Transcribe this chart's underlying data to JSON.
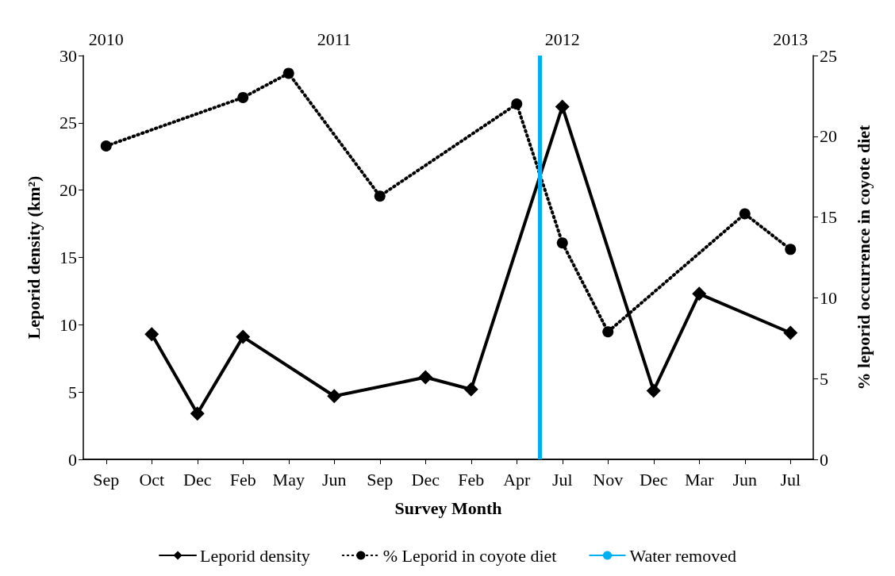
{
  "chart_data": {
    "type": "line",
    "categories": [
      "Sep",
      "Oct",
      "Dec",
      "Feb",
      "May",
      "Jun",
      "Sep",
      "Dec",
      "Feb",
      "Apr",
      "Jul",
      "Nov",
      "Dec",
      "Mar",
      "Jun",
      "Jul"
    ],
    "xlabel": "Survey Month",
    "ylabel": "Leporid density (km²)",
    "y2label": "% leporid occurrence in coyote diet",
    "series": [
      {
        "name": "Leporid density",
        "color": "#000000",
        "marker": "diamond",
        "line_style": "solid",
        "values": [
          null,
          9.3,
          3.4,
          9.1,
          null,
          4.7,
          null,
          6.1,
          5.2,
          null,
          26.2,
          null,
          5.1,
          12.3,
          null,
          9.4
        ]
      },
      {
        "name": "% Leporid in coyote diet",
        "color": "#000000",
        "marker": "circle",
        "line_style": "dotted",
        "axis": "y2",
        "values": [
          19.4,
          null,
          null,
          22.4,
          23.9,
          null,
          16.3,
          null,
          null,
          22.0,
          13.4,
          7.9,
          null,
          null,
          15.2,
          13.0
        ]
      }
    ],
    "ylim": [
      0,
      30
    ],
    "yticks": [
      0,
      5,
      10,
      15,
      20,
      25,
      30
    ],
    "y2lim": [
      0,
      25
    ],
    "y2ticks": [
      0,
      5,
      10,
      15,
      20,
      25
    ],
    "x2lim": [
      2009.9,
      2013.1
    ],
    "x2ticks": [
      2010,
      2011,
      2012,
      2013
    ],
    "ref_lines": [
      {
        "axis": "x2",
        "value": 2011.9,
        "label": "Water removed",
        "color": "#00b0f0"
      }
    ],
    "grid": false,
    "legend": "bottom"
  }
}
